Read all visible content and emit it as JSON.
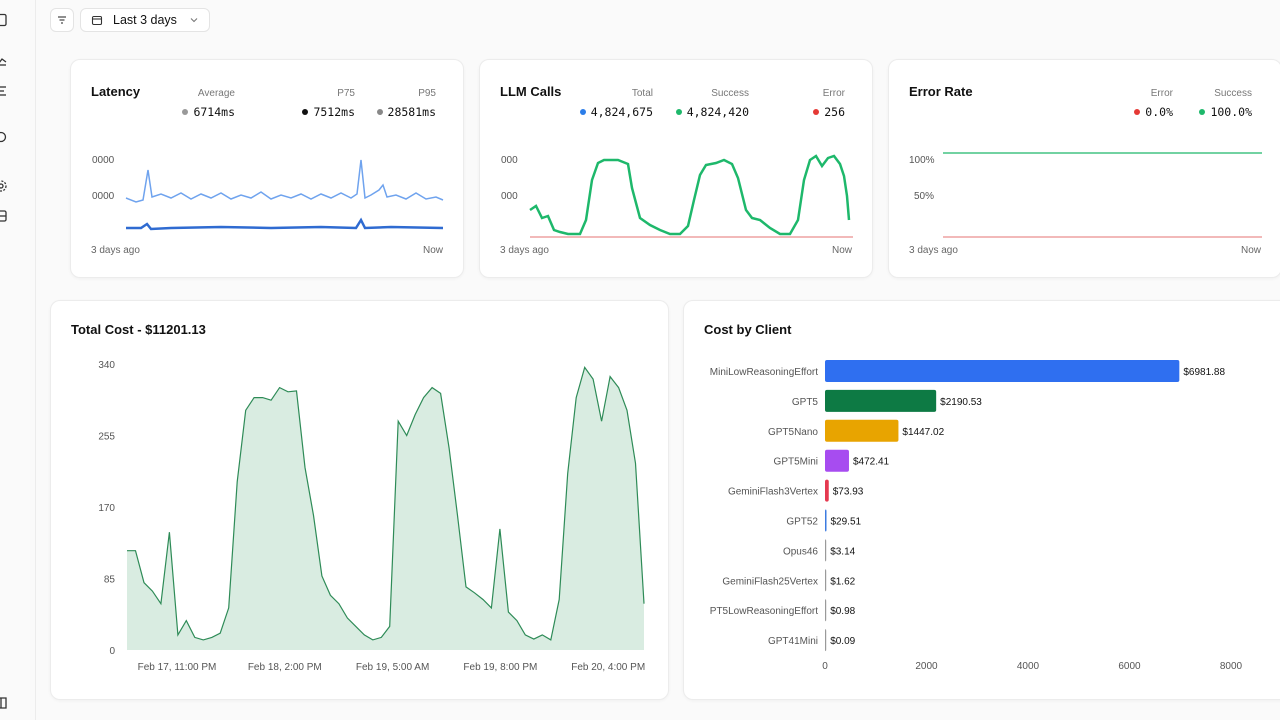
{
  "toolbar": {
    "range_label": "Last 3 days"
  },
  "latency": {
    "title": "Latency",
    "metrics": [
      {
        "label": "Average",
        "value": "6714ms",
        "color": "#999999"
      },
      {
        "label": "P75",
        "value": "7512ms",
        "color": "#111111"
      },
      {
        "label": "P95",
        "value": "28581ms",
        "color": "#888888"
      }
    ],
    "y_ticks": [
      "0000",
      "0000"
    ],
    "start_label": "3 days ago",
    "end_label": "Now"
  },
  "llm_calls": {
    "title": "LLM Calls",
    "metrics": [
      {
        "label": "Total",
        "value": "4,824,675",
        "color": "#2b7de9"
      },
      {
        "label": "Success",
        "value": "4,824,420",
        "color": "#1eb86b"
      },
      {
        "label": "Error",
        "value": "256",
        "color": "#e53935"
      }
    ],
    "y_ticks": [
      "000",
      "000"
    ],
    "start_label": "3 days ago",
    "end_label": "Now"
  },
  "error_rate": {
    "title": "Error Rate",
    "metrics": [
      {
        "label": "Error",
        "value": "0.0%",
        "color": "#e53935"
      },
      {
        "label": "Success",
        "value": "100.0%",
        "color": "#1eb86b"
      }
    ],
    "y_ticks": [
      "100%",
      "50%"
    ],
    "start_label": "3 days ago",
    "end_label": "Now"
  },
  "chart_data": [
    {
      "type": "area",
      "title": "Total Cost - $11201.13",
      "ylim": [
        0,
        340
      ],
      "y_ticks": [
        0,
        85,
        170,
        255,
        340
      ],
      "x_tick_labels": [
        "Feb 17, 11:00 PM",
        "Feb 18, 2:00 PM",
        "Feb 19, 5:00 AM",
        "Feb 19, 8:00 PM",
        "Feb 20, 4:00 PM"
      ],
      "values": [
        118,
        118,
        80,
        70,
        55,
        140,
        18,
        35,
        15,
        12,
        15,
        20,
        50,
        200,
        285,
        300,
        300,
        297,
        312,
        307,
        308,
        217,
        160,
        88,
        65,
        55,
        38,
        28,
        18,
        12,
        15,
        28,
        272,
        255,
        280,
        300,
        312,
        305,
        240,
        160,
        75,
        68,
        60,
        50,
        144,
        45,
        35,
        18,
        13,
        18,
        12,
        60,
        210,
        300,
        336,
        322,
        272,
        325,
        312,
        285,
        222,
        55
      ],
      "color": "#2e8b57",
      "fill": "#d9ece1"
    },
    {
      "type": "bar",
      "orientation": "horizontal",
      "title": "Cost by Client",
      "categories": [
        "MiniLowReasoningEffort",
        "GPT5",
        "GPT5Nano",
        "GPT5Mini",
        "GeminiFlash3Vertex",
        "GPT52",
        "Opus46",
        "GeminiFlash25Vertex",
        "PT5LowReasoningEffort",
        "GPT41Mini"
      ],
      "values": [
        6981.88,
        2190.53,
        1447.02,
        472.41,
        73.93,
        29.51,
        3.14,
        1.62,
        0.98,
        0.09
      ],
      "value_labels": [
        "$6981.88",
        "$2190.53",
        "$1447.02",
        "$472.41",
        "$73.93",
        "$29.51",
        "$3.14",
        "$1.62",
        "$0.98",
        "$0.09"
      ],
      "colors": [
        "#2f6ff0",
        "#0d7a44",
        "#e8a400",
        "#a74cf0",
        "#e53950",
        "#3d7be0",
        "#9a9a9a",
        "#9a9a9a",
        "#9a9a9a",
        "#9a9a9a"
      ],
      "xlim": [
        0,
        8000
      ],
      "x_ticks": [
        0,
        2000,
        4000,
        6000,
        8000
      ]
    }
  ]
}
